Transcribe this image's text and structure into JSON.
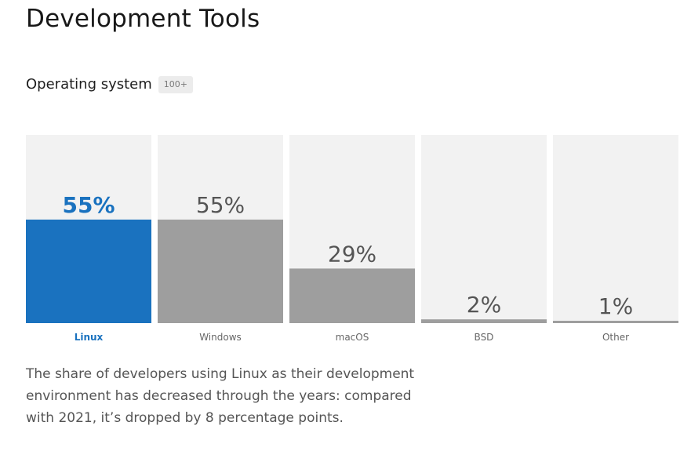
{
  "page": {
    "title": "Development Tools"
  },
  "section": {
    "title": "Operating system",
    "badge": "100+"
  },
  "description": "The share of developers using Linux as their development environment has decreased through the years: compared with 2021, it’s dropped by 8 percentage points.",
  "colors": {
    "highlight": "#1a72bf",
    "bar": "#9e9e9e",
    "track": "#f2f2f2",
    "highlight_label": "#1a72bf",
    "value_label": "#555555",
    "category_label": "#666666"
  },
  "chart_data": {
    "type": "bar",
    "categories": [
      "Linux",
      "Windows",
      "macOS",
      "BSD",
      "Other"
    ],
    "values": [
      55,
      55,
      29,
      2,
      1
    ],
    "value_labels": [
      "55%",
      "55%",
      "29%",
      "2%",
      "1%"
    ],
    "highlighted": "Linux",
    "ylim": [
      0,
      100
    ],
    "grid": false,
    "legend": "none"
  }
}
